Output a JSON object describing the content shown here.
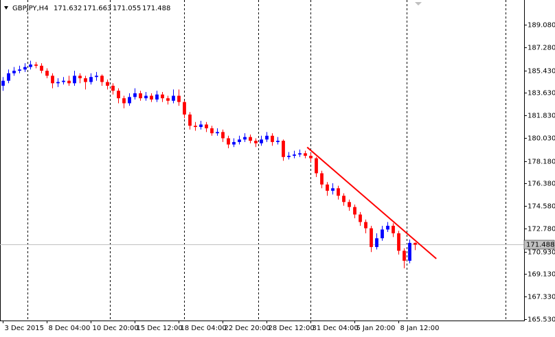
{
  "chart_data": {
    "type": "candlestick",
    "symbol": "GBPJPY,H4",
    "categories": [
      "3 Dec 2015",
      null,
      null,
      null,
      null,
      null,
      null,
      null,
      "8 Dec 04:00",
      null,
      null,
      null,
      null,
      null,
      null,
      null,
      "10 Dec 20:00",
      null,
      null,
      null,
      null,
      null,
      null,
      null,
      "15 Dec 12:00",
      null,
      null,
      null,
      null,
      null,
      null,
      null,
      "18 Dec 04:00",
      null,
      null,
      null,
      null,
      null,
      null,
      null,
      "22 Dec 20:00",
      null,
      null,
      null,
      null,
      null,
      null,
      null,
      "28 Dec 12:00",
      null,
      null,
      null,
      null,
      null,
      null,
      null,
      "31 Dec 04:00",
      null,
      null,
      null,
      null,
      null,
      null,
      null,
      "5 Jan 20:00",
      null,
      null,
      null,
      null,
      null,
      null,
      null,
      "8 Jan 12:00",
      null,
      null,
      null
    ],
    "open": [
      184.2,
      184.6,
      185.2,
      185.4,
      185.5,
      185.7,
      185.9,
      185.8,
      185.4,
      185.0,
      184.4,
      184.5,
      184.6,
      184.4,
      185.0,
      184.8,
      184.5,
      184.9,
      185.0,
      184.5,
      184.2,
      183.8,
      183.2,
      182.8,
      183.3,
      183.6,
      183.2,
      183.4,
      183.1,
      183.5,
      183.2,
      183.0,
      183.4,
      182.9,
      181.9,
      181.0,
      180.9,
      181.1,
      180.8,
      180.4,
      180.5,
      180.0,
      179.5,
      179.7,
      179.9,
      180.1,
      179.8,
      179.6,
      179.9,
      180.2,
      179.7,
      179.8,
      178.5,
      178.6,
      178.7,
      178.8,
      178.6,
      178.4,
      177.2,
      176.3,
      175.8,
      176.0,
      175.4,
      174.9,
      174.5,
      173.9,
      173.3,
      172.8,
      171.3,
      172.0,
      172.7,
      173.0,
      172.4,
      171.0,
      170.2,
      171.632
    ],
    "high": [
      184.9,
      185.5,
      185.7,
      185.8,
      186.0,
      186.2,
      186.1,
      186.0,
      185.6,
      185.2,
      184.8,
      184.9,
      185.0,
      185.4,
      185.2,
      185.0,
      185.2,
      185.3,
      185.1,
      184.7,
      184.4,
      184.0,
      183.4,
      183.6,
      184.0,
      183.8,
      183.7,
      183.6,
      183.8,
      183.7,
      183.4,
      183.9,
      183.9,
      183.0,
      182.1,
      181.3,
      181.4,
      181.3,
      181.0,
      180.8,
      180.7,
      180.2,
      180.0,
      180.2,
      180.4,
      180.3,
      180.0,
      180.2,
      180.5,
      180.4,
      180.1,
      179.9,
      178.9,
      179.0,
      179.1,
      179.0,
      178.8,
      178.5,
      177.4,
      176.5,
      176.4,
      176.2,
      175.6,
      175.1,
      174.7,
      174.1,
      173.5,
      173.0,
      172.4,
      173.0,
      173.3,
      173.2,
      172.6,
      171.2,
      171.9,
      171.663
    ],
    "low": [
      183.8,
      184.4,
      185.0,
      185.2,
      185.3,
      185.5,
      185.6,
      185.2,
      184.8,
      184.0,
      184.1,
      184.3,
      184.2,
      184.2,
      184.4,
      183.9,
      184.3,
      184.6,
      184.2,
      183.9,
      183.5,
      182.8,
      182.4,
      182.6,
      183.1,
      183.0,
      183.0,
      182.9,
      182.9,
      182.9,
      182.7,
      182.8,
      182.6,
      181.6,
      180.7,
      180.6,
      180.7,
      180.5,
      180.2,
      180.2,
      179.7,
      179.2,
      179.3,
      179.5,
      179.7,
      179.6,
      179.3,
      179.4,
      179.7,
      179.4,
      179.5,
      178.2,
      178.3,
      178.4,
      178.5,
      178.4,
      178.1,
      176.9,
      176.0,
      175.4,
      175.5,
      175.1,
      174.6,
      174.2,
      173.6,
      173.0,
      172.4,
      170.9,
      171.1,
      171.8,
      172.5,
      172.1,
      170.7,
      169.6,
      170.0,
      171.055
    ],
    "close": [
      184.6,
      185.2,
      185.4,
      185.5,
      185.7,
      185.9,
      185.8,
      185.4,
      185.0,
      184.4,
      184.5,
      184.6,
      184.4,
      185.0,
      184.8,
      184.5,
      184.9,
      185.0,
      184.5,
      184.2,
      183.8,
      183.2,
      182.8,
      183.3,
      183.6,
      183.2,
      183.4,
      183.1,
      183.5,
      183.2,
      183.0,
      183.4,
      182.9,
      181.9,
      181.0,
      180.9,
      181.1,
      180.8,
      180.4,
      180.5,
      180.0,
      179.5,
      179.7,
      179.9,
      180.1,
      179.8,
      179.6,
      179.9,
      180.2,
      179.7,
      179.8,
      178.5,
      178.6,
      178.7,
      178.8,
      178.6,
      178.4,
      177.2,
      176.3,
      175.8,
      176.0,
      175.4,
      174.9,
      174.5,
      173.9,
      173.3,
      172.8,
      171.3,
      172.0,
      172.7,
      173.0,
      172.4,
      171.0,
      170.2,
      171.632,
      171.488
    ],
    "up_color": "#0000ff",
    "down_color": "#ff0000",
    "xlim": [
      -0.5,
      94.875
    ],
    "ylim": [
      165.42,
      191.06
    ],
    "yticks": [
      {
        "value": 189.08,
        "label": "189.080"
      },
      {
        "value": 187.28,
        "label": "187.280"
      },
      {
        "value": 185.43,
        "label": "185.430"
      },
      {
        "value": 183.63,
        "label": "183.630"
      },
      {
        "value": 181.83,
        "label": "181.830"
      },
      {
        "value": 180.03,
        "label": "180.030"
      },
      {
        "value": 178.18,
        "label": "178.180"
      },
      {
        "value": 176.38,
        "label": "176.380"
      },
      {
        "value": 174.58,
        "label": "174.580"
      },
      {
        "value": 172.78,
        "label": "172.780"
      },
      {
        "value": 170.93,
        "label": "170.930"
      },
      {
        "value": 169.13,
        "label": "169.130"
      },
      {
        "value": 167.33,
        "label": "167.330"
      },
      {
        "value": 165.53,
        "label": "165.530"
      }
    ],
    "period_separators": [
      4.5,
      19.5,
      33,
      46.5,
      56,
      73.5,
      91.5
    ],
    "trendline": {
      "x": [
        55.4,
        78.9
      ],
      "y": [
        179.28,
        170.37
      ],
      "color": "#ff0000"
    }
  }
}
